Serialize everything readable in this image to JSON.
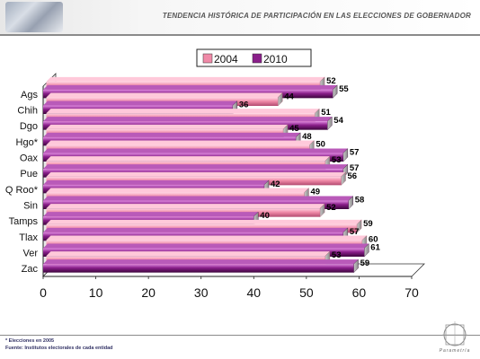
{
  "header": {
    "title": "TENDENCIA HISTÓRICA DE PARTICIPACIÓN EN LAS ELECCIONES DE GOBERNADOR"
  },
  "footer": {
    "note": "* Elecciones en 2005",
    "source": "Fuente: Institutos electorales de cada entidad",
    "logo_text": "Parametría"
  },
  "chart_data": {
    "type": "bar",
    "orientation": "horizontal",
    "categories": [
      "Ags",
      "Chih",
      "Dgo",
      "Hgo*",
      "Oax",
      "Pue",
      "Q Roo*",
      "Sin",
      "Tamps",
      "Tlax",
      "Ver",
      "Zac"
    ],
    "series": [
      {
        "name": "2004",
        "values": [
          52,
          44,
          51,
          45,
          50,
          53,
          56,
          49,
          52,
          59,
          60,
          53
        ],
        "color": "#f08aa8"
      },
      {
        "name": "2010",
        "values": [
          55,
          36,
          54,
          48,
          57,
          57,
          42,
          58,
          40,
          57,
          61,
          59
        ],
        "color": "#8a1f8a"
      }
    ],
    "xlim": [
      0,
      70
    ],
    "x_ticks": [
      0,
      10,
      20,
      30,
      40,
      50,
      60,
      70
    ],
    "legend_position": "top-center",
    "grid": false
  }
}
